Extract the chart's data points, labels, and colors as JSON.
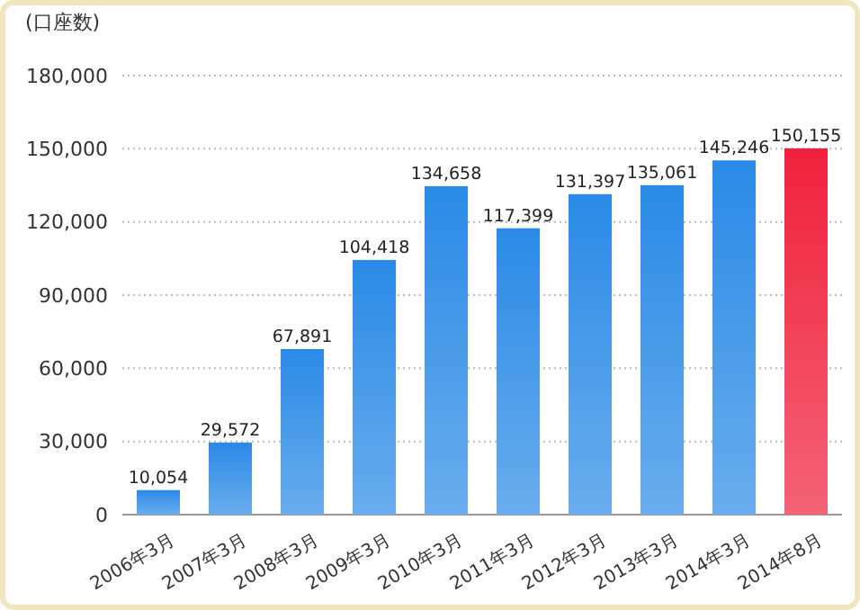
{
  "chart_data": {
    "type": "bar",
    "ylabel": "(口座数)",
    "categories": [
      "2006年3月",
      "2007年3月",
      "2008年3月",
      "2009年3月",
      "2010年3月",
      "2011年3月",
      "2012年3月",
      "2013年3月",
      "2014年3月",
      "2014年8月"
    ],
    "values": [
      10054,
      29572,
      67891,
      104418,
      134658,
      117399,
      131397,
      135061,
      145246,
      150155
    ],
    "colors": [
      "#2a8ae6",
      "#2a8ae6",
      "#2a8ae6",
      "#2a8ae6",
      "#2a8ae6",
      "#2a8ae6",
      "#2a8ae6",
      "#2a8ae6",
      "#2a8ae6",
      "#f0203c"
    ],
    "ylim": [
      0,
      180000
    ],
    "yticks": [
      {
        "value": 0,
        "label": "0"
      },
      {
        "value": 30000,
        "label": "30,000"
      },
      {
        "value": 60000,
        "label": "60,000"
      },
      {
        "value": 90000,
        "label": "90,000"
      },
      {
        "value": 120000,
        "label": "120,000"
      },
      {
        "value": 150000,
        "label": "150,000"
      },
      {
        "value": 180000,
        "label": "180,000"
      }
    ],
    "value_labels": [
      "10,054",
      "29,572",
      "67,891",
      "104,418",
      "134,658",
      "117,399",
      "131,397",
      "135,061",
      "145,246",
      "150,155"
    ],
    "grid": true
  }
}
